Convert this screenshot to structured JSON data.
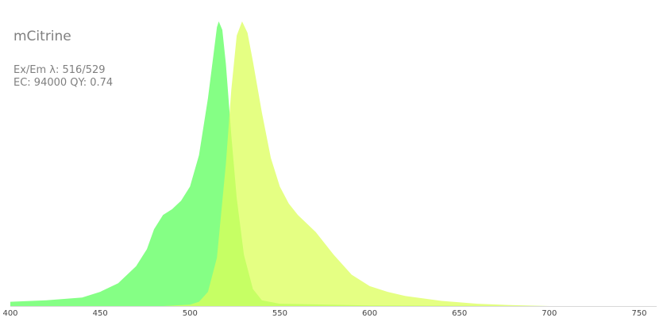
{
  "info": {
    "title": "mCitrine",
    "ex_em_label": "Ex/Em λ: 516/529",
    "ec_qy_label": "EC: 94000  QY: 0.74"
  },
  "chart_data": {
    "type": "area",
    "title": "mCitrine",
    "xlabel": "",
    "ylabel": "",
    "xlim": [
      400,
      760
    ],
    "ylim": [
      0,
      1
    ],
    "x_ticks": [
      400,
      450,
      500,
      550,
      600,
      650,
      700,
      750
    ],
    "grid": false,
    "legend": "none",
    "series": [
      {
        "color": "#5cff5c",
        "opacity": 0.75,
        "points": [
          [
            400,
            0.015
          ],
          [
            420,
            0.02
          ],
          [
            440,
            0.03
          ],
          [
            450,
            0.05
          ],
          [
            460,
            0.08
          ],
          [
            470,
            0.14
          ],
          [
            476,
            0.2
          ],
          [
            480,
            0.27
          ],
          [
            485,
            0.32
          ],
          [
            490,
            0.34
          ],
          [
            495,
            0.37
          ],
          [
            500,
            0.42
          ],
          [
            505,
            0.53
          ],
          [
            510,
            0.73
          ],
          [
            513,
            0.88
          ],
          [
            515,
            0.98
          ],
          [
            516,
            1.0
          ],
          [
            518,
            0.97
          ],
          [
            520,
            0.85
          ],
          [
            523,
            0.6
          ],
          [
            526,
            0.38
          ],
          [
            530,
            0.18
          ],
          [
            535,
            0.06
          ],
          [
            540,
            0.02
          ],
          [
            550,
            0.008
          ],
          [
            600,
            0.002
          ],
          [
            700,
            0.0
          ]
        ]
      },
      {
        "color": "#dcff5a",
        "opacity": 0.75,
        "points": [
          [
            485,
            0.0
          ],
          [
            500,
            0.005
          ],
          [
            505,
            0.015
          ],
          [
            510,
            0.05
          ],
          [
            515,
            0.17
          ],
          [
            520,
            0.5
          ],
          [
            523,
            0.76
          ],
          [
            526,
            0.95
          ],
          [
            529,
            1.0
          ],
          [
            532,
            0.96
          ],
          [
            535,
            0.86
          ],
          [
            540,
            0.68
          ],
          [
            545,
            0.52
          ],
          [
            550,
            0.42
          ],
          [
            555,
            0.36
          ],
          [
            560,
            0.32
          ],
          [
            570,
            0.26
          ],
          [
            580,
            0.18
          ],
          [
            590,
            0.11
          ],
          [
            600,
            0.07
          ],
          [
            610,
            0.05
          ],
          [
            620,
            0.035
          ],
          [
            640,
            0.018
          ],
          [
            660,
            0.008
          ],
          [
            680,
            0.003
          ],
          [
            700,
            0.0
          ]
        ]
      }
    ]
  }
}
